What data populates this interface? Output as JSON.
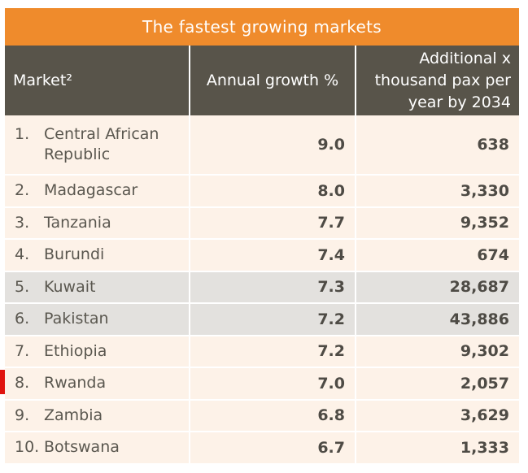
{
  "title": "The fastest growing markets",
  "colors": {
    "title_bar": "#ef8b2c",
    "header": "#58544a",
    "row": "#fdf2e8",
    "row_highlight": "#e3e1de",
    "marker": "#e0140f"
  },
  "headers": {
    "market": "Market²",
    "growth": "Annual growth %",
    "additional": [
      "Additional x",
      "thousand pax per",
      "year by 2034"
    ]
  },
  "chart_data": {
    "type": "table",
    "title": "The fastest growing markets",
    "columns": [
      "Market²",
      "Annual growth %",
      "Additional x thousand pax per year by 2034"
    ],
    "rows": [
      {
        "rank": "1.",
        "market": "Central African Republic",
        "growth": "9.0",
        "additional": "638",
        "highlight": false
      },
      {
        "rank": "2.",
        "market": "Madagascar",
        "growth": "8.0",
        "additional": "3,330",
        "highlight": false
      },
      {
        "rank": "3.",
        "market": "Tanzania",
        "growth": "7.7",
        "additional": "9,352",
        "highlight": false
      },
      {
        "rank": "4.",
        "market": "Burundi",
        "growth": "7.4",
        "additional": "674",
        "highlight": false
      },
      {
        "rank": "5.",
        "market": "Kuwait",
        "growth": "7.3",
        "additional": "28,687",
        "highlight": true
      },
      {
        "rank": "6.",
        "market": "Pakistan",
        "growth": "7.2",
        "additional": "43,886",
        "highlight": true
      },
      {
        "rank": "7.",
        "market": "Ethiopia",
        "growth": "7.2",
        "additional": "9,302",
        "highlight": false
      },
      {
        "rank": "8.",
        "market": "Rwanda",
        "growth": "7.0",
        "additional": "2,057",
        "highlight": false
      },
      {
        "rank": "9.",
        "market": "Zambia",
        "growth": "6.8",
        "additional": "3,629",
        "highlight": false
      },
      {
        "rank": "10.",
        "market": "Botswana",
        "growth": "6.7",
        "additional": "1,333",
        "highlight": false
      }
    ]
  }
}
